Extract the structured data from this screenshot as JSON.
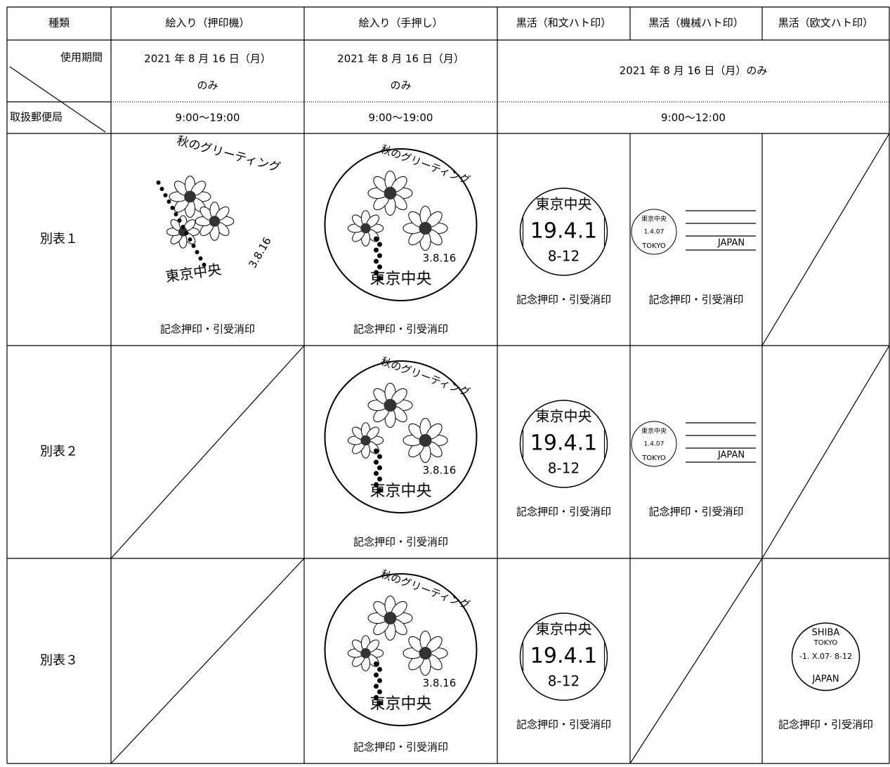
{
  "table": {
    "header": [
      "種類",
      "絵入り（押印機）",
      "絵入り（手押し）",
      "黒活（和文ハト印）",
      "黒活（機械ハト印）",
      "黒活（欧文ハト印）"
    ],
    "corner": {
      "top": "使用期間",
      "bottom": "取扱郵便局"
    },
    "period": [
      [
        "2021 年 8 月 16 日（月）",
        "のみ"
      ],
      [
        "2021 年 8 月 16 日（月）",
        "のみ"
      ],
      "2021 年 8 月 16 日（月）のみ"
    ],
    "hours": [
      "9:00〜19:00",
      "9:00〜19:00",
      "9:00〜12:00"
    ],
    "rows": [
      {
        "label": "別表１",
        "cells": [
          "記念押印・引受消印",
          "記念押印・引受消印",
          "記念押印・引受消印",
          "記念押印・引受消印",
          null
        ]
      },
      {
        "label": "別表２",
        "cells": [
          null,
          "記念押印・引受消印",
          "記念押印・引受消印",
          "記念押印・引受消印",
          null
        ]
      },
      {
        "label": "別表３",
        "cells": [
          null,
          "記念押印・引受消印",
          "記念押印・引受消印",
          null,
          "記念押印・引受消印"
        ]
      }
    ]
  },
  "stamps": {
    "pictorial_title": "秋のグリーティング",
    "office": "東京中央",
    "pictorial_date": "3.8.16",
    "wabun_date": "19.4.1",
    "wabun_time": "8-12",
    "machine_date": "1.4.07",
    "machine_city": "TOKYO",
    "machine_country": "JAPAN",
    "oubun_name": "SHIBA",
    "oubun_city": "TOKYO",
    "oubun_date": "-1. X.07· 8-12",
    "oubun_country": "JAPAN"
  }
}
